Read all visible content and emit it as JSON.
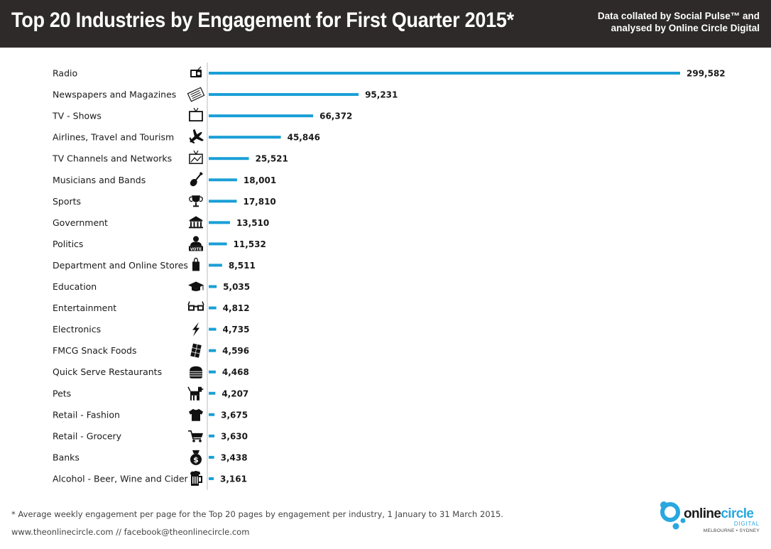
{
  "header": {
    "title": "Top 20 Industries by Engagement for First Quarter 2015*",
    "credit_line1": "Data collated by Social Pulse™ and",
    "credit_line2": "analysed by Online Circle Digital"
  },
  "chart_data": {
    "type": "bar",
    "orientation": "horizontal",
    "title": "Top 20 Industries by Engagement for First Quarter 2015*",
    "categories": [
      "Radio",
      "Newspapers and Magazines",
      "TV - Shows",
      "Airlines, Travel and Tourism",
      "TV Channels and Networks",
      "Musicians and Bands",
      "Sports",
      "Government",
      "Politics",
      "Department and Online Stores",
      "Education",
      "Entertainment",
      "Electronics",
      "FMCG Snack Foods",
      "Quick Serve Restaurants",
      "Pets",
      "Retail - Fashion",
      "Retail - Grocery",
      "Banks",
      "Alcohol - Beer, Wine and Cider"
    ],
    "values": [
      299582,
      95231,
      66372,
      45846,
      25521,
      18001,
      17810,
      13510,
      11532,
      8511,
      5035,
      4812,
      4735,
      4596,
      4468,
      4207,
      3675,
      3630,
      3438,
      3161
    ],
    "value_labels": [
      "299,582",
      "95,231",
      "66,372",
      "45,846",
      "25,521",
      "18,001",
      "17,810",
      "13,510",
      "11,532",
      "8,511",
      "5,035",
      "4,812",
      "4,735",
      "4,596",
      "4,468",
      "4,207",
      "3,675",
      "3,630",
      "3,438",
      "3,161"
    ],
    "icons": [
      "radio-icon",
      "newspaper-icon",
      "tv-icon",
      "airplane-icon",
      "tv-antenna-icon",
      "guitar-icon",
      "trophy-icon",
      "government-building-icon",
      "vote-person-icon",
      "shopping-bag-icon",
      "graduation-cap-icon",
      "3d-glasses-icon",
      "lightning-icon",
      "chocolate-bar-icon",
      "burger-icon",
      "dog-icon",
      "tshirt-icon",
      "shopping-cart-icon",
      "money-bag-icon",
      "beer-mug-icon"
    ],
    "xlim": [
      0,
      299582
    ],
    "grid": false,
    "legend": "none",
    "bar_color": "#1a9fd6"
  },
  "footer": {
    "footnote": "* Average weekly engagement per page for the Top 20 pages by engagement per industry, 1 January to 31 March 2015.",
    "links": "www.theonlinecircle.com // facebook@theonlinecircle.com"
  },
  "logo": {
    "word1": "online",
    "word2": "circle",
    "sub": "DIGITAL",
    "location": "MELBOURNE • SYDNEY"
  },
  "colors": {
    "header_bg": "#2d2a29",
    "bar": "#1a9fd6",
    "accent": "#29a8e0"
  }
}
